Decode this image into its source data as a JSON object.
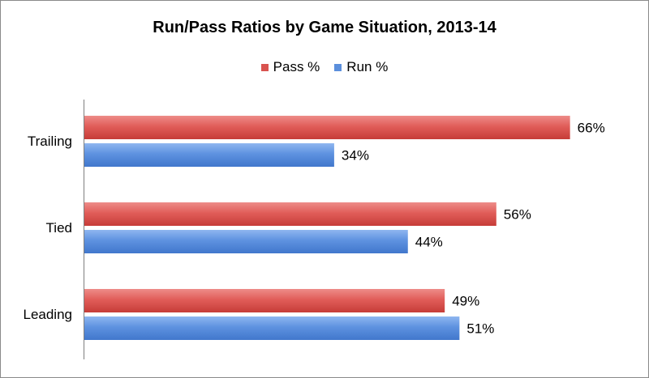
{
  "chart_data": {
    "type": "bar",
    "orientation": "horizontal",
    "title": "Run/Pass Ratios by Game Situation, 2013-14",
    "categories": [
      "Trailing",
      "Tied",
      "Leading"
    ],
    "series": [
      {
        "name": "Pass %",
        "color": "#d9534f",
        "values": [
          66,
          56,
          49
        ],
        "labels": [
          "66%",
          "56%",
          "49%"
        ]
      },
      {
        "name": "Run %",
        "color": "#5b8fdc",
        "values": [
          34,
          44,
          51
        ],
        "labels": [
          "34%",
          "44%",
          "51%"
        ]
      }
    ],
    "xlim": [
      0,
      70
    ],
    "grid": false,
    "legend_position": "top"
  }
}
